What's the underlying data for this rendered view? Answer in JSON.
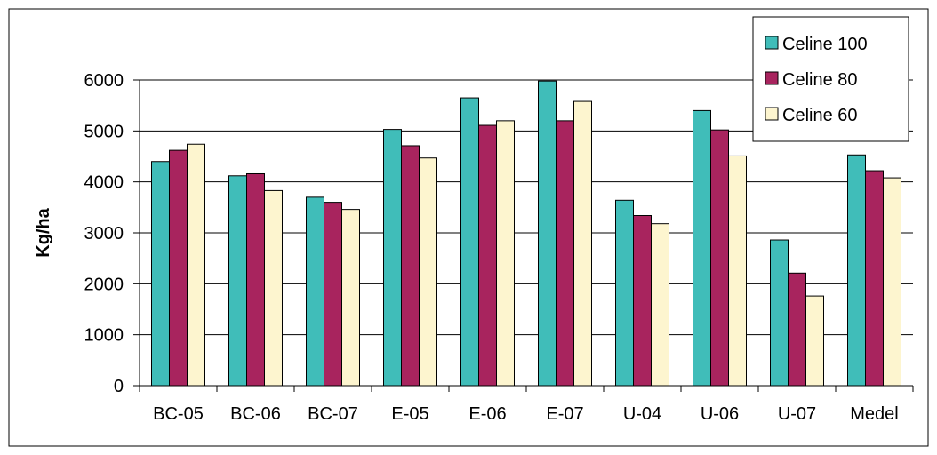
{
  "chart_data": {
    "type": "bar",
    "categories": [
      "BC-05",
      "BC-06",
      "BC-07",
      "E-05",
      "E-06",
      "E-07",
      "U-04",
      "U-06",
      "U-07",
      "Medel"
    ],
    "series": [
      {
        "name": "Celine 100",
        "color": "#40bdb9",
        "values": [
          4400,
          4120,
          3700,
          5030,
          5650,
          5980,
          3640,
          5400,
          2860,
          4530
        ]
      },
      {
        "name": "Celine 80",
        "color": "#a8245e",
        "values": [
          4620,
          4160,
          3600,
          4710,
          5110,
          5200,
          3340,
          5020,
          2210,
          4220
        ]
      },
      {
        "name": "Celine 60",
        "color": "#fdf5cf",
        "values": [
          4740,
          3830,
          3460,
          4470,
          5200,
          5580,
          3180,
          4510,
          1760,
          4080
        ]
      }
    ],
    "title": "",
    "xlabel": "",
    "ylabel": "Kg/ha",
    "ylim": [
      0,
      6000
    ],
    "yticks": [
      0,
      1000,
      2000,
      3000,
      4000,
      5000,
      6000
    ],
    "grid": true,
    "legend_position": "top-right"
  }
}
